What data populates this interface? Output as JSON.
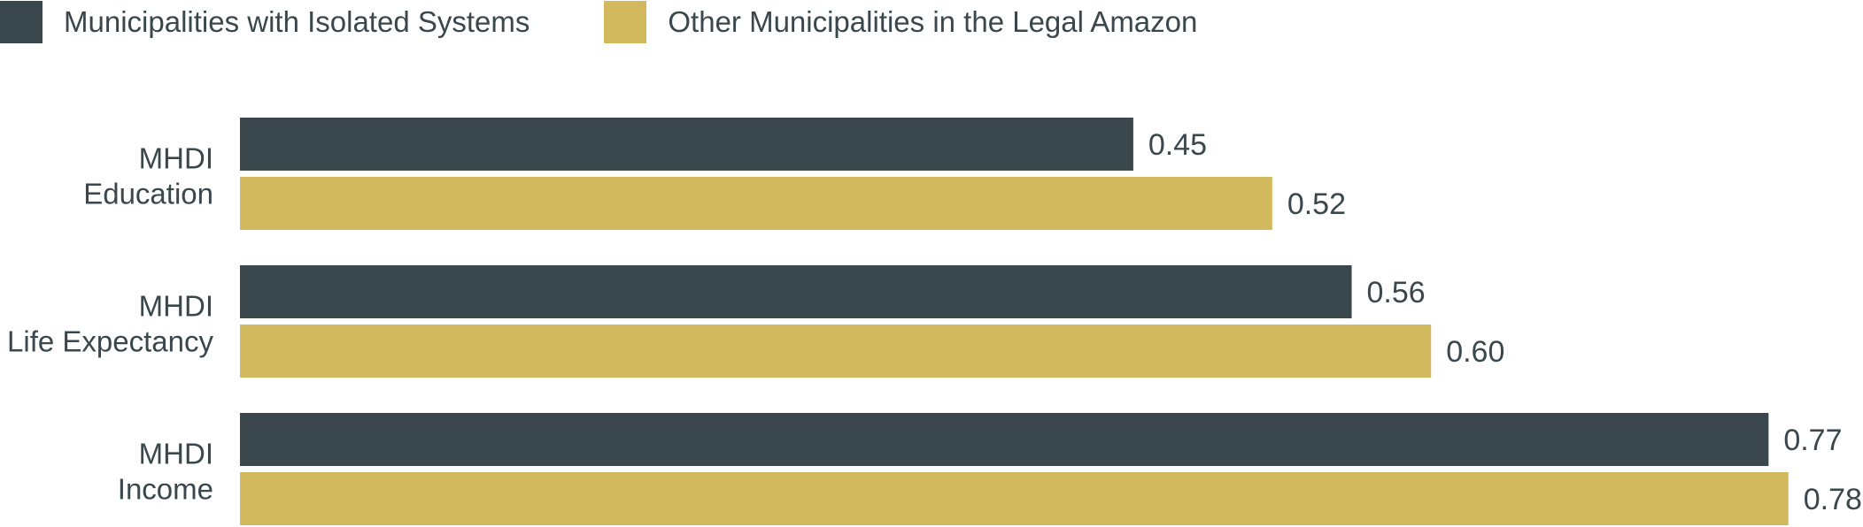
{
  "chart_data": {
    "type": "bar",
    "orientation": "horizontal",
    "categories": [
      [
        "MHDI",
        "Education"
      ],
      [
        "MHDI",
        "Life Expectancy"
      ],
      [
        "MHDI",
        "Income"
      ]
    ],
    "series": [
      {
        "name": "Municipalities with Isolated Systems",
        "color": "#3a474d",
        "values": [
          0.45,
          0.56,
          0.77
        ],
        "labels": [
          "0.45",
          "0.56",
          "0.77"
        ]
      },
      {
        "name": "Other Municipalities in the Legal Amazon",
        "color": "#d3b95e",
        "values": [
          0.52,
          0.6,
          0.78
        ],
        "labels": [
          "0.52",
          "0.60",
          "0.78"
        ]
      }
    ],
    "xlim": [
      0,
      0.78
    ],
    "legend_position": "top-left",
    "grid": false,
    "title": "",
    "xlabel": "",
    "ylabel": ""
  }
}
